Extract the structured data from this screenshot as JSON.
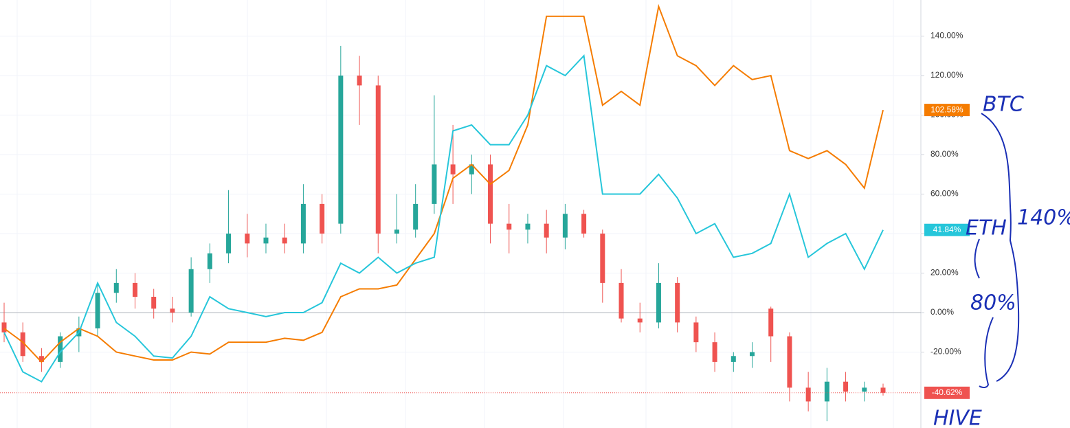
{
  "chart_data": {
    "type": "candlestick",
    "categories": [
      null,
      null,
      null,
      null,
      null,
      null,
      null,
      null,
      null,
      null,
      null,
      null,
      null,
      null,
      null,
      null,
      null,
      null,
      null,
      null,
      null,
      null,
      null,
      null,
      null,
      null,
      null,
      null,
      null,
      null,
      null,
      null,
      null,
      null,
      null,
      null,
      null,
      null,
      null,
      null,
      null,
      null,
      null,
      null,
      null,
      null,
      null,
      null
    ],
    "ylim": [
      -58.43,
      158.26
    ],
    "yticks": [
      {
        "value": -20,
        "label": "-20.00%"
      },
      {
        "value": 0,
        "label": "0.00%"
      },
      {
        "value": 20,
        "label": "20.00%"
      },
      {
        "value": 40,
        "label": "40.00%"
      },
      {
        "value": 60,
        "label": "60.00%"
      },
      {
        "value": 80,
        "label": "80.00%"
      },
      {
        "value": 100,
        "label": "100.00%"
      },
      {
        "value": 120,
        "label": "120.00%"
      },
      {
        "value": 140,
        "label": "140.00%"
      }
    ],
    "grid": true,
    "series": [
      {
        "name": "BTC",
        "color": "#f57c00",
        "values": [
          -8,
          -15,
          -25,
          -15,
          -8,
          -12,
          -20,
          -22,
          -24,
          -24,
          -20,
          -21,
          -15,
          -15,
          -15,
          -13,
          -14,
          -10,
          8,
          12,
          12,
          14,
          27,
          40,
          68,
          75,
          65,
          72,
          95,
          150,
          150,
          150,
          105,
          112,
          105,
          155,
          130,
          125,
          115,
          125,
          118,
          120,
          82,
          78,
          82,
          75,
          63,
          102.58
        ],
        "value_labels": [
          null,
          null,
          null,
          null,
          null,
          null,
          null,
          null,
          null,
          null,
          null,
          null,
          null,
          null,
          null,
          null,
          null,
          null,
          null,
          null,
          null,
          null,
          null,
          null,
          null,
          null,
          null,
          null,
          null,
          null,
          null,
          null,
          null,
          null,
          null,
          null,
          null,
          null,
          null,
          null,
          null,
          null,
          null,
          null,
          null,
          null,
          null,
          "102.58%"
        ]
      },
      {
        "name": "ETH",
        "color": "#26c6da",
        "values": [
          -10,
          -30,
          -35,
          -20,
          -10,
          15,
          -5,
          -12,
          -22,
          -23,
          -12,
          8,
          2,
          0,
          -2,
          0,
          0,
          5,
          25,
          20,
          28,
          20,
          25,
          28,
          92,
          95,
          85,
          85,
          100,
          125,
          120,
          130,
          60,
          60,
          60,
          70,
          58,
          40,
          45,
          28,
          30,
          35,
          60,
          28,
          35,
          40,
          22,
          41.84
        ],
        "value_labels": [
          null,
          null,
          null,
          null,
          null,
          null,
          null,
          null,
          null,
          null,
          null,
          null,
          null,
          null,
          null,
          null,
          null,
          null,
          null,
          null,
          null,
          null,
          null,
          null,
          null,
          null,
          null,
          null,
          null,
          null,
          null,
          null,
          null,
          null,
          null,
          null,
          null,
          null,
          null,
          null,
          null,
          null,
          null,
          null,
          null,
          null,
          null,
          "41.84%"
        ]
      }
    ],
    "candles": {
      "name": "HIVE",
      "up_color": "#26a69a",
      "down_color": "#ef5350",
      "open": [
        -5,
        -10,
        -22,
        -25,
        -12,
        -8,
        10,
        15,
        8,
        2,
        0,
        22,
        30,
        40,
        35,
        38,
        35,
        55,
        45,
        120,
        115,
        40,
        42,
        55,
        75,
        70,
        75,
        45,
        42,
        45,
        38,
        50,
        40,
        15,
        -3,
        -5,
        15,
        -5,
        -15,
        -25,
        -22,
        2,
        -12,
        -38,
        -45,
        -35,
        -40,
        -38
      ],
      "high": [
        5,
        -5,
        -18,
        -10,
        -2,
        15,
        22,
        20,
        12,
        8,
        28,
        35,
        62,
        50,
        45,
        45,
        65,
        60,
        135,
        130,
        120,
        60,
        65,
        110,
        95,
        80,
        80,
        55,
        50,
        52,
        55,
        52,
        42,
        22,
        5,
        25,
        18,
        -2,
        -10,
        -20,
        -15,
        3,
        -10,
        -30,
        -28,
        -30,
        -35,
        -36
      ],
      "low": [
        -15,
        -25,
        -30,
        -28,
        -20,
        -12,
        5,
        2,
        -3,
        -5,
        -2,
        15,
        25,
        28,
        30,
        30,
        30,
        35,
        40,
        95,
        30,
        35,
        38,
        50,
        55,
        60,
        35,
        30,
        35,
        30,
        32,
        38,
        5,
        -5,
        -10,
        -8,
        -10,
        -20,
        -30,
        -30,
        -28,
        -25,
        -45,
        -50,
        -55,
        -45,
        -45,
        -42
      ],
      "close": [
        -10,
        -22,
        -25,
        -12,
        -8,
        10,
        15,
        8,
        2,
        0,
        22,
        30,
        40,
        35,
        38,
        35,
        55,
        40,
        120,
        115,
        40,
        42,
        55,
        75,
        70,
        75,
        45,
        42,
        45,
        38,
        50,
        40,
        15,
        -3,
        -5,
        15,
        -5,
        -15,
        -25,
        -22,
        -20,
        -12,
        -38,
        -45,
        -35,
        -40,
        -38,
        -40.62
      ],
      "value_labels": [
        null,
        null,
        null,
        null,
        null,
        null,
        null,
        null,
        null,
        null,
        null,
        null,
        null,
        null,
        null,
        null,
        null,
        null,
        null,
        null,
        null,
        null,
        null,
        null,
        null,
        null,
        null,
        null,
        null,
        null,
        null,
        null,
        null,
        null,
        null,
        null,
        null,
        null,
        null,
        null,
        null,
        null,
        null,
        null,
        null,
        null,
        null,
        "-40.62%"
      ]
    },
    "annotations": [
      "140%",
      "80%"
    ]
  }
}
